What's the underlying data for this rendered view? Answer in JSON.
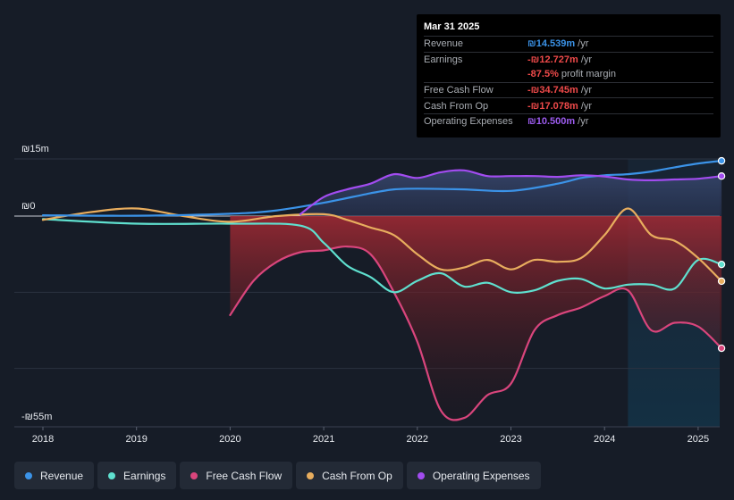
{
  "tooltip": {
    "date": "Mar 31 2025",
    "rows": [
      {
        "label": "Revenue",
        "value": "₪14.539m",
        "unit": "/yr",
        "color": "#3b93e8"
      },
      {
        "label": "Earnings",
        "value": "-₪12.727m",
        "unit": "/yr",
        "color": "#ef4a4a"
      },
      {
        "label": "",
        "value": "-87.5%",
        "unit": "profit margin",
        "color": "#ef4a4a"
      },
      {
        "label": "Free Cash Flow",
        "value": "-₪34.745m",
        "unit": "/yr",
        "color": "#ef4a4a"
      },
      {
        "label": "Cash From Op",
        "value": "-₪17.078m",
        "unit": "/yr",
        "color": "#ef4a4a"
      },
      {
        "label": "Operating Expenses",
        "value": "₪10.500m",
        "unit": "/yr",
        "color": "#9d5cf0"
      }
    ]
  },
  "legend": [
    {
      "label": "Revenue",
      "color": "#3b93e8"
    },
    {
      "label": "Earnings",
      "color": "#5fe0cf"
    },
    {
      "label": "Free Cash Flow",
      "color": "#d9457c"
    },
    {
      "label": "Cash From Op",
      "color": "#e8ad5e"
    },
    {
      "label": "Operating Expenses",
      "color": "#a24cf0"
    }
  ],
  "chart_data": {
    "type": "line",
    "title": "",
    "units": "₪m",
    "y_tick_labels": [
      {
        "value": 15,
        "label": "₪15m"
      },
      {
        "value": 0,
        "label": "₪0"
      },
      {
        "value": -55,
        "label": "-₪55m"
      }
    ],
    "ylim": [
      -55,
      15
    ],
    "xlim": [
      2017.7,
      2025.25
    ],
    "x_ticks": [
      "2018",
      "2019",
      "2020",
      "2021",
      "2022",
      "2023",
      "2024",
      "2025"
    ],
    "forecast_start": 2024.25,
    "series": [
      {
        "name": "Revenue",
        "color": "#3b93e8",
        "x": [
          2018,
          2019,
          2020,
          2020.5,
          2021,
          2021.5,
          2021.75,
          2022,
          2022.5,
          2023,
          2023.5,
          2023.75,
          2024,
          2024.25,
          2024.5,
          2024.75,
          2025,
          2025.25
        ],
        "y": [
          0.2,
          0.1,
          0.6,
          1.5,
          3.5,
          6.0,
          7.0,
          7.2,
          7.0,
          6.6,
          8.5,
          10.0,
          10.7,
          11.0,
          11.7,
          12.8,
          13.8,
          14.5
        ]
      },
      {
        "name": "Earnings",
        "color": "#5fe0cf",
        "x": [
          2018,
          2019,
          2020,
          2020.75,
          2021,
          2021.25,
          2021.5,
          2021.75,
          2022,
          2022.25,
          2022.5,
          2022.75,
          2023,
          2023.25,
          2023.5,
          2023.75,
          2024,
          2024.25,
          2024.5,
          2024.75,
          2025,
          2025.25
        ],
        "y": [
          -0.8,
          -2.0,
          -2.0,
          -2.5,
          -7.0,
          -13.0,
          -16.0,
          -20.0,
          -17.0,
          -15.0,
          -18.5,
          -17.5,
          -20.0,
          -19.5,
          -17.0,
          -16.5,
          -19.0,
          -18.0,
          -18.0,
          -19.0,
          -11.5,
          -12.7
        ]
      },
      {
        "name": "Free Cash Flow",
        "color": "#d9457c",
        "x": [
          2020,
          2020.25,
          2020.5,
          2020.75,
          2021,
          2021.25,
          2021.5,
          2021.75,
          2022,
          2022.25,
          2022.5,
          2022.75,
          2023,
          2023.25,
          2023.5,
          2023.75,
          2024,
          2024.25,
          2024.5,
          2024.75,
          2025,
          2025.25
        ],
        "y": [
          -26.0,
          -17.0,
          -12.0,
          -9.5,
          -9.0,
          -8.0,
          -10.0,
          -20.0,
          -33.0,
          -51.0,
          -53.0,
          -47.0,
          -44.0,
          -30.0,
          -26.0,
          -24.0,
          -21.0,
          -19.5,
          -30.0,
          -28.0,
          -29.0,
          -34.7
        ]
      },
      {
        "name": "Cash From Op",
        "color": "#e8ad5e",
        "x": [
          2018,
          2018.5,
          2019,
          2019.5,
          2020,
          2020.5,
          2021,
          2021.25,
          2021.5,
          2021.75,
          2022,
          2022.25,
          2022.5,
          2022.75,
          2023,
          2023.25,
          2023.5,
          2023.75,
          2024,
          2024.25,
          2024.5,
          2024.75,
          2025,
          2025.25
        ],
        "y": [
          -1.0,
          1.0,
          2.0,
          0.0,
          -1.5,
          0.0,
          0.5,
          -1.0,
          -3.0,
          -5.0,
          -10.0,
          -14.0,
          -13.5,
          -11.5,
          -14.0,
          -11.5,
          -12.0,
          -11.0,
          -5.0,
          2.0,
          -5.0,
          -6.5,
          -11.0,
          -17.1
        ]
      },
      {
        "name": "Operating Expenses",
        "color": "#a24cf0",
        "x": [
          2020.75,
          2021,
          2021.25,
          2021.5,
          2021.75,
          2022,
          2022.25,
          2022.5,
          2022.75,
          2023,
          2023.25,
          2023.5,
          2023.75,
          2024,
          2024.25,
          2024.5,
          2024.75,
          2025,
          2025.25
        ],
        "y": [
          0.5,
          5.0,
          7.0,
          8.5,
          11.0,
          10.0,
          11.5,
          12.0,
          10.5,
          10.5,
          10.5,
          10.3,
          10.7,
          10.4,
          9.6,
          9.4,
          9.6,
          9.8,
          10.5
        ]
      }
    ]
  }
}
